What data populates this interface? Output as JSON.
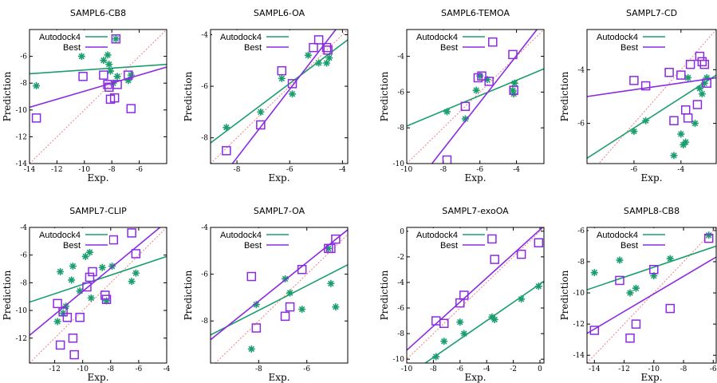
{
  "colors": {
    "autodock": "#1b9e6e",
    "best": "#8a2be2",
    "diagonal": "#f08080"
  },
  "chart_data": [
    {
      "type": "scatter",
      "title": "SAMPL6-CB8",
      "xlabel": "Exp.",
      "ylabel": "Prediction",
      "xlim": [
        -14,
        -4
      ],
      "ylim": [
        -14,
        -4
      ],
      "xticks": [
        "-14",
        "-12",
        "-10",
        "-8",
        "-6"
      ],
      "yticks": [
        "-14",
        "-12",
        "-10",
        "-8",
        "-6"
      ],
      "legend_position": "top-left",
      "series": [
        {
          "name": "Autodock4",
          "marker": "star",
          "line": [
            [
              -14,
              -7.3
            ],
            [
              -4,
              -6.6
            ]
          ],
          "points": [
            [
              -13.5,
              -8.2
            ],
            [
              -10.2,
              -6.0
            ],
            [
              -8.6,
              -6.3
            ],
            [
              -8.3,
              -5.9
            ],
            [
              -8.2,
              -6.6
            ],
            [
              -8.1,
              -7.1
            ],
            [
              -7.9,
              -8.0
            ],
            [
              -7.7,
              -4.7
            ],
            [
              -7.6,
              -7.5
            ],
            [
              -6.8,
              -7.8
            ],
            [
              -6.6,
              -7.4
            ]
          ]
        },
        {
          "name": "Best",
          "marker": "square",
          "line": [
            [
              -14,
              -9.8
            ],
            [
              -4,
              -6.8
            ]
          ],
          "points": [
            [
              -13.5,
              -10.6
            ],
            [
              -10.1,
              -7.5
            ],
            [
              -8.6,
              -7.4
            ],
            [
              -8.3,
              -8.1
            ],
            [
              -8.2,
              -8.3
            ],
            [
              -8.1,
              -9.2
            ],
            [
              -7.8,
              -9.1
            ],
            [
              -7.7,
              -4.7
            ],
            [
              -7.6,
              -8.1
            ],
            [
              -6.8,
              -7.4
            ],
            [
              -6.6,
              -9.9
            ]
          ]
        }
      ]
    },
    {
      "type": "scatter",
      "title": "SAMPL6-OA",
      "xlabel": "Exp.",
      "ylabel": "Prediction",
      "xlim": [
        -9,
        -3.8
      ],
      "ylim": [
        -9,
        -3.8
      ],
      "xticks": [
        "-8",
        "-6",
        "-4"
      ],
      "yticks": [
        "-8",
        "-6",
        "-4"
      ],
      "legend_position": "top-left",
      "series": [
        {
          "name": "Autodock4",
          "marker": "star",
          "line": [
            [
              -9,
              -8.2
            ],
            [
              -3.8,
              -4.2
            ]
          ],
          "points": [
            [
              -8.4,
              -7.6
            ],
            [
              -7.1,
              -7.0
            ],
            [
              -6.3,
              -5.7
            ],
            [
              -5.9,
              -6.3
            ],
            [
              -5.3,
              -4.8
            ],
            [
              -4.9,
              -5.1
            ],
            [
              -4.6,
              -5.1
            ],
            [
              -4.5,
              -4.9
            ]
          ]
        },
        {
          "name": "Best",
          "marker": "square",
          "line": [
            [
              -9,
              -10.1
            ],
            [
              -3.8,
              -3.2
            ]
          ],
          "points": [
            [
              -8.4,
              -8.5
            ],
            [
              -7.1,
              -7.5
            ],
            [
              -6.3,
              -5.4
            ],
            [
              -5.9,
              -5.9
            ],
            [
              -5.1,
              -4.5
            ],
            [
              -4.9,
              -4.2
            ],
            [
              -4.6,
              -4.5
            ],
            [
              -4.55,
              -4.6
            ]
          ]
        }
      ]
    },
    {
      "type": "scatter",
      "title": "SAMPL6-TEMOA",
      "xlabel": "Exp.",
      "ylabel": "Prediction",
      "xlim": [
        -10,
        -2.5
      ],
      "ylim": [
        -10,
        -2.5
      ],
      "xticks": [
        "-10",
        "-8",
        "-6",
        "-4"
      ],
      "yticks": [
        "-10",
        "-8",
        "-6",
        "-4"
      ],
      "legend_position": "top-left",
      "series": [
        {
          "name": "Autodock4",
          "marker": "star",
          "line": [
            [
              -10,
              -7.9
            ],
            [
              -2.5,
              -4.7
            ]
          ],
          "points": [
            [
              -7.8,
              -7.1
            ],
            [
              -6.8,
              -7.5
            ],
            [
              -6.2,
              -5.9
            ],
            [
              -6.0,
              -5.1
            ],
            [
              -5.6,
              -5.3
            ],
            [
              -4.2,
              -5.9
            ],
            [
              -4.15,
              -6.1
            ],
            [
              -4.1,
              -5.5
            ]
          ]
        },
        {
          "name": "Best",
          "marker": "square",
          "line": [
            [
              -10,
              -11.8
            ],
            [
              -2.5,
              -2.0
            ]
          ],
          "points": [
            [
              -7.8,
              -9.8
            ],
            [
              -6.8,
              -6.8
            ],
            [
              -6.1,
              -5.2
            ],
            [
              -5.9,
              -5.1
            ],
            [
              -5.5,
              -5.4
            ],
            [
              -5.3,
              -3.2
            ],
            [
              -4.2,
              -3.9
            ],
            [
              -4.15,
              -5.9
            ]
          ]
        }
      ]
    },
    {
      "type": "scatter",
      "title": "SAMPL7-CD",
      "xlabel": "Exp.",
      "ylabel": "Prediction",
      "xlim": [
        -8,
        -2.5
      ],
      "ylim": [
        -7.5,
        -2.5
      ],
      "xticks": [
        "-6",
        "-4"
      ],
      "yticks": [
        "-6",
        "-4"
      ],
      "legend_position": "top-left",
      "series": [
        {
          "name": "Autodock4",
          "marker": "star",
          "line": [
            [
              -8,
              -7.3
            ],
            [
              -2.5,
              -4.2
            ]
          ],
          "points": [
            [
              -6.0,
              -6.3
            ],
            [
              -5.5,
              -5.9
            ],
            [
              -4.3,
              -7.2
            ],
            [
              -4.0,
              -6.4
            ],
            [
              -3.9,
              -6.8
            ],
            [
              -3.8,
              -6.7
            ],
            [
              -3.7,
              -4.3
            ],
            [
              -3.4,
              -6.0
            ],
            [
              -3.2,
              -4.7
            ],
            [
              -3.1,
              -4.9
            ],
            [
              -3.0,
              -4.5
            ],
            [
              -2.9,
              -4.3
            ]
          ]
        },
        {
          "name": "Best",
          "marker": "square",
          "line": [
            [
              -8,
              -5.0
            ],
            [
              -2.5,
              -4.3
            ]
          ],
          "points": [
            [
              -6.0,
              -4.4
            ],
            [
              -5.5,
              -4.6
            ],
            [
              -4.5,
              -4.1
            ],
            [
              -4.3,
              -5.9
            ],
            [
              -4.0,
              -4.2
            ],
            [
              -3.8,
              -5.5
            ],
            [
              -3.7,
              -5.8
            ],
            [
              -3.6,
              -3.8
            ],
            [
              -3.3,
              -5.3
            ],
            [
              -3.2,
              -3.5
            ],
            [
              -3.1,
              -3.7
            ],
            [
              -3.0,
              -3.8
            ],
            [
              -2.9,
              -4.5
            ]
          ]
        }
      ]
    },
    {
      "type": "scatter",
      "title": "SAMPL7-CLIP",
      "xlabel": "Exp.",
      "ylabel": "Prediction",
      "xlim": [
        -13.8,
        -4
      ],
      "ylim": [
        -13.8,
        -4
      ],
      "xticks": [
        "-12",
        "-10",
        "-8",
        "-6",
        "-4"
      ],
      "yticks": [
        "-12",
        "-10",
        "-8",
        "-6",
        "-4"
      ],
      "legend_position": "top-left",
      "series": [
        {
          "name": "Autodock4",
          "marker": "star",
          "line": [
            [
              -13.8,
              -9.4
            ],
            [
              -4,
              -6.1
            ]
          ],
          "points": [
            [
              -11.8,
              -10.8
            ],
            [
              -11.6,
              -7.2
            ],
            [
              -11.4,
              -10.2
            ],
            [
              -11.2,
              -9.7
            ],
            [
              -10.8,
              -7.8
            ],
            [
              -10.7,
              -6.8
            ],
            [
              -10.2,
              -8.6
            ],
            [
              -9.8,
              -6.1
            ],
            [
              -9.5,
              -5.8
            ],
            [
              -9.4,
              -9.1
            ],
            [
              -8.6,
              -6.9
            ],
            [
              -8.3,
              -9.3
            ],
            [
              -7.9,
              -6.8
            ],
            [
              -6.5,
              -7.9
            ],
            [
              -6.2,
              -7.3
            ]
          ]
        },
        {
          "name": "Best",
          "marker": "square",
          "line": [
            [
              -13.8,
              -11.8
            ],
            [
              -4,
              -3.6
            ]
          ],
          "points": [
            [
              -11.8,
              -9.5
            ],
            [
              -11.6,
              -12.5
            ],
            [
              -11.4,
              -10.1
            ],
            [
              -11.1,
              -10.5
            ],
            [
              -10.7,
              -12.0
            ],
            [
              -10.6,
              -13.2
            ],
            [
              -10.2,
              -10.5
            ],
            [
              -9.7,
              -8.3
            ],
            [
              -9.5,
              -7.6
            ],
            [
              -9.3,
              -7.2
            ],
            [
              -8.4,
              -8.9
            ],
            [
              -8.3,
              -9.2
            ],
            [
              -7.8,
              -4.9
            ],
            [
              -6.5,
              -4.4
            ],
            [
              -6.2,
              -5.9
            ]
          ]
        }
      ]
    },
    {
      "type": "scatter",
      "title": "SAMPL7-OA",
      "xlabel": "Exp.",
      "ylabel": "Prediction",
      "xlim": [
        -10,
        -4.3
      ],
      "ylim": [
        -9.8,
        -4
      ],
      "xticks": [
        "-8",
        "-6"
      ],
      "yticks": [
        "-8",
        "-6",
        "-4"
      ],
      "legend_position": "top-left",
      "series": [
        {
          "name": "Autodock4",
          "marker": "star",
          "line": [
            [
              -10,
              -8.6
            ],
            [
              -4.3,
              -5.6
            ]
          ],
          "points": [
            [
              -8.3,
              -9.2
            ],
            [
              -8.1,
              -7.3
            ],
            [
              -6.9,
              -6.2
            ],
            [
              -6.7,
              -6.8
            ],
            [
              -6.2,
              -7.5
            ],
            [
              -5.1,
              -4.9
            ],
            [
              -5.0,
              -6.4
            ],
            [
              -4.8,
              -7.4
            ]
          ]
        },
        {
          "name": "Best",
          "marker": "square",
          "line": [
            [
              -10,
              -8.8
            ],
            [
              -4.3,
              -4.1
            ]
          ],
          "points": [
            [
              -8.3,
              -6.1
            ],
            [
              -8.1,
              -8.3
            ],
            [
              -6.9,
              -7.8
            ],
            [
              -6.7,
              -7.4
            ],
            [
              -6.2,
              -5.8
            ],
            [
              -5.1,
              -4.9
            ],
            [
              -5.0,
              -4.9
            ],
            [
              -4.8,
              -4.5
            ]
          ]
        }
      ]
    },
    {
      "type": "scatter",
      "title": "SAMPL7-exoOA",
      "xlabel": "Exp.",
      "ylabel": "Prediction",
      "xlim": [
        -10,
        0.3
      ],
      "ylim": [
        -10.3,
        0.3
      ],
      "xticks": [
        "-10",
        "-8",
        "-6",
        "-4",
        "-2",
        "0"
      ],
      "yticks": [
        "-10",
        "-8",
        "-6",
        "-4",
        "-2",
        "0"
      ],
      "legend_position": "top-left",
      "series": [
        {
          "name": "Autodock4",
          "marker": "star",
          "line": [
            [
              -10,
              -11.3
            ],
            [
              0.3,
              -3.9
            ]
          ],
          "points": [
            [
              -7.8,
              -9.8
            ],
            [
              -7.2,
              -8.6
            ],
            [
              -6.0,
              -7.1
            ],
            [
              -5.7,
              -8.0
            ],
            [
              -3.6,
              -6.7
            ],
            [
              -3.4,
              -6.9
            ],
            [
              -1.4,
              -5.3
            ],
            [
              -0.1,
              -4.3
            ]
          ]
        },
        {
          "name": "Best",
          "marker": "square",
          "line": [
            [
              -10,
              -9.3
            ],
            [
              0.3,
              0.4
            ]
          ],
          "points": [
            [
              -7.8,
              -7.0
            ],
            [
              -7.2,
              -7.2
            ],
            [
              -6.0,
              -5.6
            ],
            [
              -5.7,
              -5.0
            ],
            [
              -3.6,
              -0.6
            ],
            [
              -3.4,
              -2.2
            ],
            [
              -1.4,
              -1.8
            ],
            [
              -0.1,
              -0.9
            ]
          ]
        }
      ]
    },
    {
      "type": "scatter",
      "title": "SAMPL8-CB8",
      "xlabel": "Exp.",
      "ylabel": "Prediction",
      "xlim": [
        -14.5,
        -5.8
      ],
      "ylim": [
        -14.5,
        -5.8
      ],
      "xticks": [
        "-14",
        "-12",
        "-10",
        "-8",
        "-6"
      ],
      "yticks": [
        "-14",
        "-12",
        "-10",
        "-8",
        "-6"
      ],
      "legend_position": "top-left",
      "series": [
        {
          "name": "Autodock4",
          "marker": "star",
          "line": [
            [
              -14.5,
              -9.8
            ],
            [
              -5.8,
              -7.0
            ]
          ],
          "points": [
            [
              -14.0,
              -8.7
            ],
            [
              -12.3,
              -7.9
            ],
            [
              -11.6,
              -10.0
            ],
            [
              -11.2,
              -9.7
            ],
            [
              -10.0,
              -8.9
            ],
            [
              -8.9,
              -7.8
            ],
            [
              -6.3,
              -6.3
            ]
          ]
        },
        {
          "name": "Best",
          "marker": "square",
          "line": [
            [
              -14.5,
              -12.6
            ],
            [
              -5.8,
              -7.7
            ]
          ],
          "points": [
            [
              -14.0,
              -12.4
            ],
            [
              -12.3,
              -9.2
            ],
            [
              -11.6,
              -12.9
            ],
            [
              -11.2,
              -12.0
            ],
            [
              -10.0,
              -8.5
            ],
            [
              -8.9,
              -11.0
            ],
            [
              -6.3,
              -6.5
            ]
          ]
        }
      ]
    }
  ]
}
